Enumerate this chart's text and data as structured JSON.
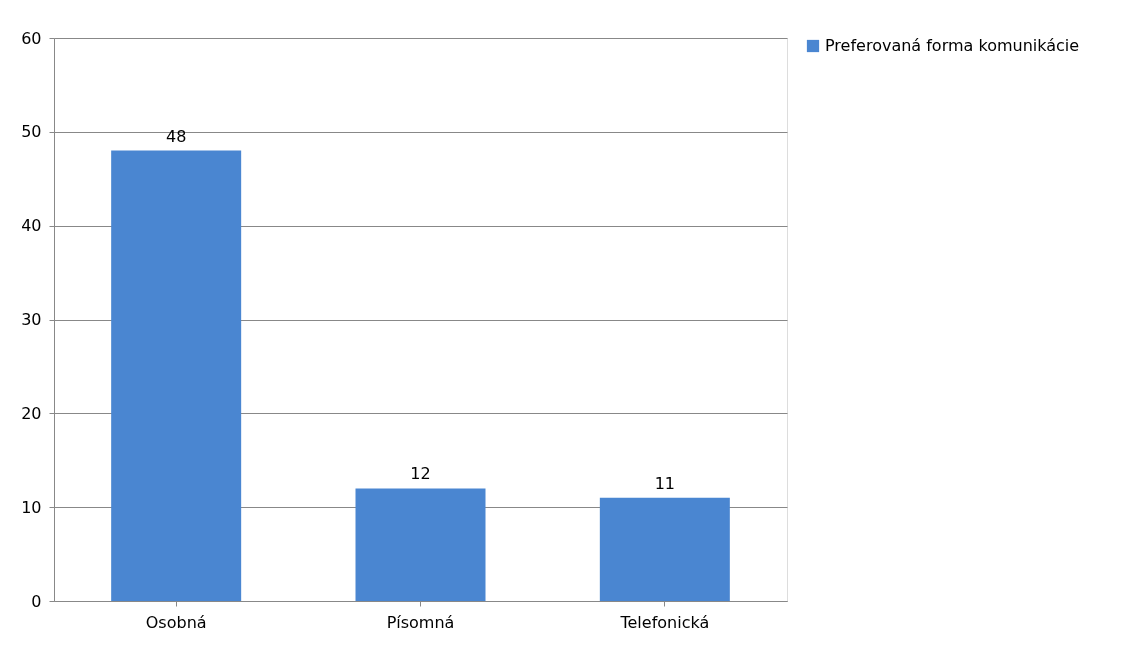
{
  "chart_data": {
    "type": "bar",
    "categories": [
      "Osobná",
      "Písomná",
      "Telefonická"
    ],
    "series": [
      {
        "name": "Preferovaná forma komunikácie",
        "color": "#4a86d1",
        "values": [
          48,
          12,
          11
        ]
      }
    ],
    "ylim": [
      0,
      60
    ],
    "yticks": [
      0,
      10,
      20,
      30,
      40,
      50,
      60
    ],
    "grid": "y",
    "legend": "right",
    "data_labels": true
  }
}
